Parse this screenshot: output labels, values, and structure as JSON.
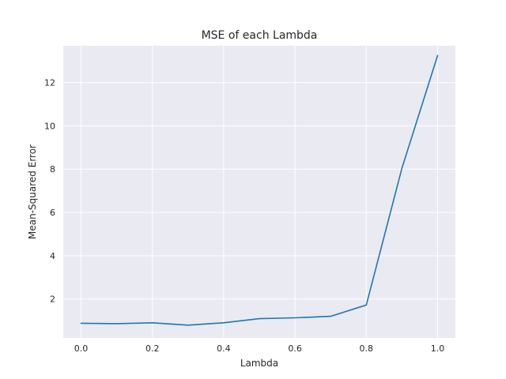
{
  "chart_data": {
    "type": "line",
    "title": "MSE of each Lambda",
    "xlabel": "Lambda",
    "ylabel": "Mean-Squared Error",
    "xlim": [
      -0.05,
      1.05
    ],
    "ylim": [
      0.2,
      13.7
    ],
    "x_ticks": [
      0.0,
      0.2,
      0.4,
      0.6,
      0.8,
      1.0
    ],
    "x_tick_labels": [
      "0.0",
      "0.2",
      "0.4",
      "0.6",
      "0.8",
      "1.0"
    ],
    "y_ticks": [
      2,
      4,
      6,
      8,
      10,
      12
    ],
    "y_tick_labels": [
      "2",
      "4",
      "6",
      "8",
      "10",
      "12"
    ],
    "grid": true,
    "background": "#eaeaf2",
    "series": [
      {
        "color": "#1f77b4",
        "x": [
          0.0,
          0.1,
          0.2,
          0.3,
          0.4,
          0.5,
          0.6,
          0.7,
          0.8,
          0.9,
          1.0
        ],
        "y": [
          0.88,
          0.86,
          0.9,
          0.79,
          0.9,
          1.09,
          1.13,
          1.2,
          1.72,
          8.05,
          13.25
        ]
      }
    ]
  }
}
